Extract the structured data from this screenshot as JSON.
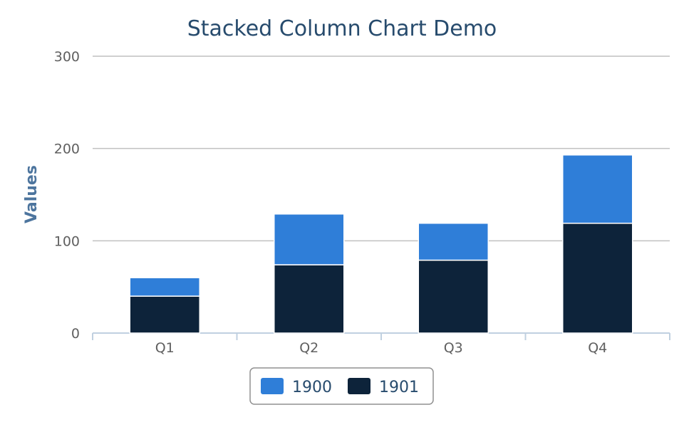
{
  "chart_data": {
    "type": "bar",
    "stacked": true,
    "title": "Stacked Column Chart Demo",
    "xlabel": "",
    "ylabel": "Values",
    "categories": [
      "Q1",
      "Q2",
      "Q3",
      "Q4"
    ],
    "ylim": [
      0,
      300
    ],
    "yticks": [
      "0",
      "100",
      "200",
      "300"
    ],
    "grid": true,
    "legend_position": "bottom-center",
    "series": [
      {
        "name": "1900",
        "color": "#2f7ed8",
        "values": [
          20,
          55,
          40,
          74
        ]
      },
      {
        "name": "1901",
        "color": "#0d233a",
        "values": [
          40,
          74,
          79,
          119
        ]
      }
    ]
  }
}
